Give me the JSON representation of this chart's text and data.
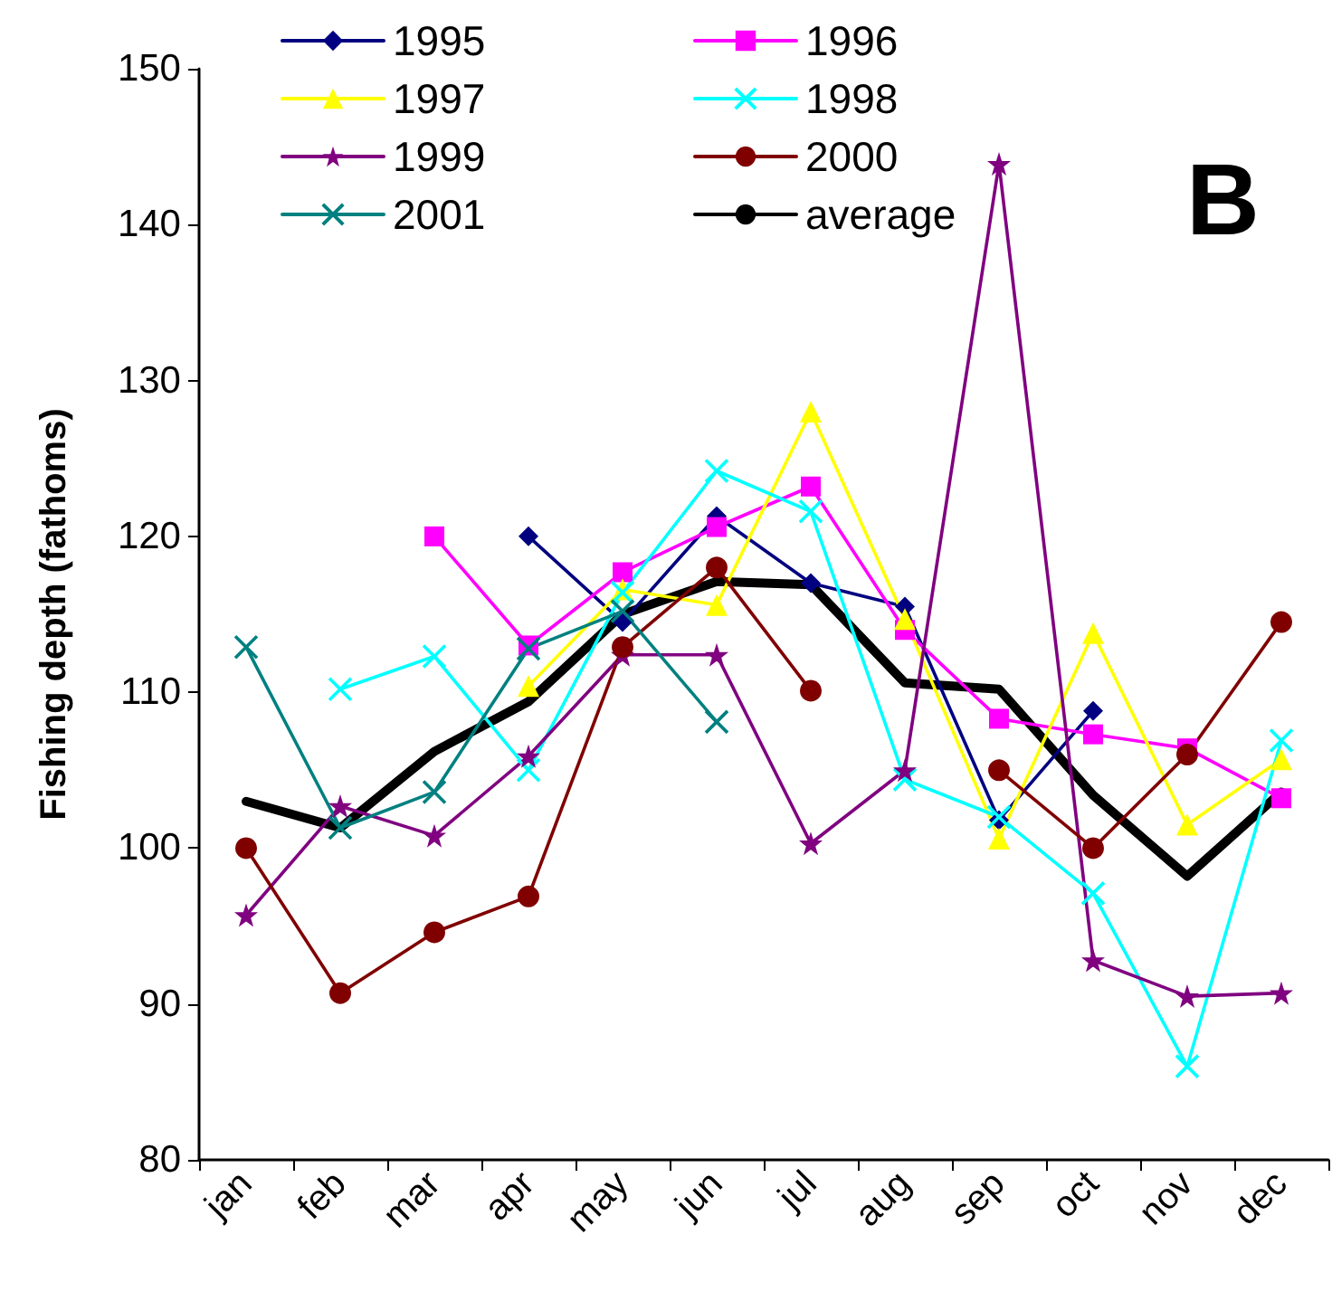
{
  "chart_data": {
    "type": "line",
    "ylabel": "Fishing depth (fathoms)",
    "categories": [
      "jan",
      "feb",
      "mar",
      "apr",
      "may",
      "jun",
      "jul",
      "aug",
      "sep",
      "oct",
      "nov",
      "dec"
    ],
    "series": [
      {
        "name": "1995",
        "color": "#000080",
        "marker": "diamond",
        "values": [
          null,
          null,
          null,
          120,
          114.5,
          121.3,
          117,
          115.5,
          101.8,
          108.8,
          null,
          null
        ]
      },
      {
        "name": "1996",
        "color": "#ff00ff",
        "marker": "square",
        "values": [
          null,
          null,
          120,
          113,
          117.7,
          120.6,
          123.2,
          114,
          108.3,
          107.3,
          106.4,
          103.2
        ]
      },
      {
        "name": "1997",
        "color": "#ffff00",
        "marker": "triangle",
        "values": [
          null,
          null,
          null,
          110.4,
          116.6,
          115.6,
          128,
          114.7,
          100.6,
          113.8,
          101.5,
          105.7
        ]
      },
      {
        "name": "1998",
        "color": "#00ffff",
        "marker": "cross",
        "values": [
          null,
          110.2,
          112.3,
          105,
          116.4,
          124.2,
          121.6,
          104.4,
          102,
          97.1,
          86,
          106.9
        ]
      },
      {
        "name": "1999",
        "color": "#800080",
        "marker": "star",
        "values": [
          95.7,
          102.7,
          100.8,
          105.9,
          112.4,
          112.4,
          100.3,
          105,
          143.9,
          92.8,
          90.5,
          90.7
        ]
      },
      {
        "name": "2000",
        "color": "#800000",
        "marker": "circle",
        "values": [
          100,
          90.7,
          94.6,
          96.9,
          112.9,
          118,
          110.1,
          null,
          105,
          100,
          106,
          114.5
        ]
      },
      {
        "name": "2001",
        "color": "#008080",
        "marker": "cross",
        "values": [
          112.9,
          101.3,
          103.6,
          112.8,
          115.2,
          108.1,
          null,
          null,
          null,
          null,
          null,
          null
        ]
      },
      {
        "name": "average",
        "color": "#000000",
        "marker": "none",
        "values": [
          103,
          101.3,
          106.2,
          109.4,
          115,
          117.1,
          116.9,
          110.6,
          110.2,
          103.4,
          98.2,
          103.6
        ]
      }
    ],
    "ylim": [
      80,
      150
    ],
    "yticks": [
      80,
      90,
      100,
      110,
      120,
      130,
      140,
      150
    ],
    "grid": false,
    "legend": "top left",
    "line_style": "solid",
    "annotations": [
      "B"
    ]
  }
}
